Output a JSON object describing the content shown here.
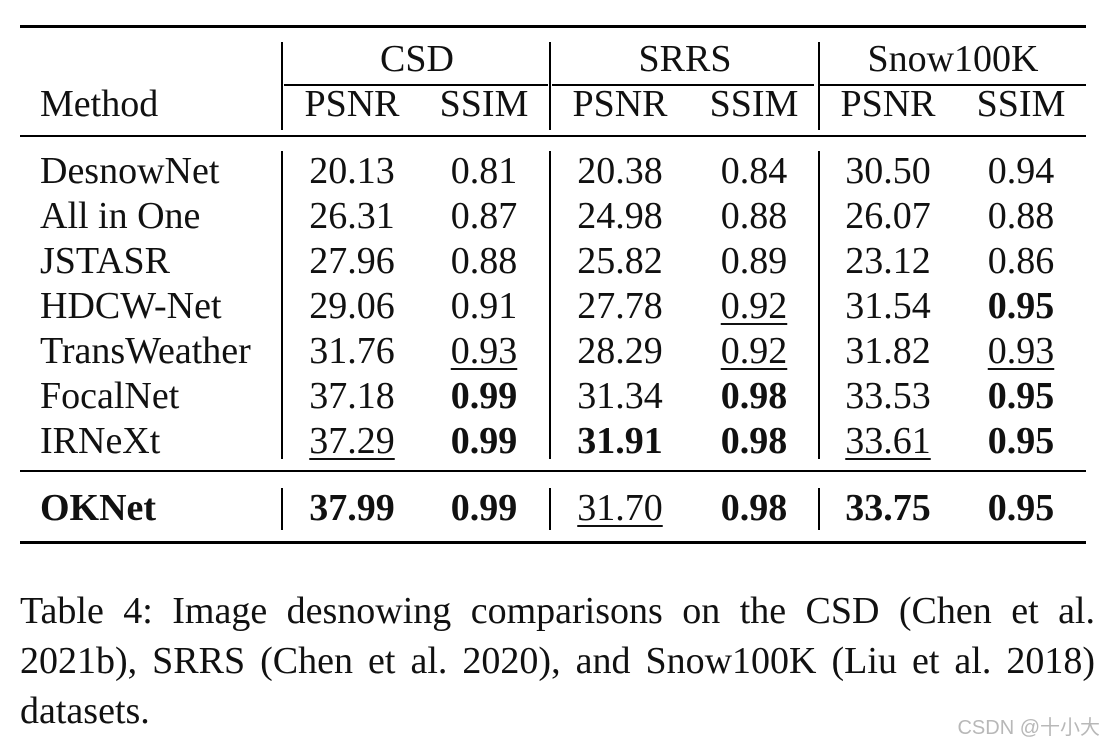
{
  "table": {
    "method_header": "Method",
    "groups": [
      "CSD",
      "SRRS",
      "Snow100K"
    ],
    "subheaders": [
      "PSNR",
      "SSIM",
      "PSNR",
      "SSIM",
      "PSNR",
      "SSIM"
    ],
    "rows": [
      {
        "method": "DesnowNet",
        "values": [
          "20.13",
          "0.81",
          "20.38",
          "0.84",
          "30.50",
          "0.94"
        ],
        "bold": [
          false,
          false,
          false,
          false,
          false,
          false
        ],
        "underline": [
          false,
          false,
          false,
          false,
          false,
          false
        ]
      },
      {
        "method": "All in One",
        "values": [
          "26.31",
          "0.87",
          "24.98",
          "0.88",
          "26.07",
          "0.88"
        ],
        "bold": [
          false,
          false,
          false,
          false,
          false,
          false
        ],
        "underline": [
          false,
          false,
          false,
          false,
          false,
          false
        ]
      },
      {
        "method": "JSTASR",
        "values": [
          "27.96",
          "0.88",
          "25.82",
          "0.89",
          "23.12",
          "0.86"
        ],
        "bold": [
          false,
          false,
          false,
          false,
          false,
          false
        ],
        "underline": [
          false,
          false,
          false,
          false,
          false,
          false
        ]
      },
      {
        "method": "HDCW-Net",
        "values": [
          "29.06",
          "0.91",
          "27.78",
          "0.92",
          "31.54",
          "0.95"
        ],
        "bold": [
          false,
          false,
          false,
          false,
          false,
          true
        ],
        "underline": [
          false,
          false,
          false,
          true,
          false,
          false
        ]
      },
      {
        "method": "TransWeather",
        "values": [
          "31.76",
          "0.93",
          "28.29",
          "0.92",
          "31.82",
          "0.93"
        ],
        "bold": [
          false,
          false,
          false,
          false,
          false,
          false
        ],
        "underline": [
          false,
          true,
          false,
          true,
          false,
          true
        ]
      },
      {
        "method": "FocalNet",
        "values": [
          "37.18",
          "0.99",
          "31.34",
          "0.98",
          "33.53",
          "0.95"
        ],
        "bold": [
          false,
          true,
          false,
          true,
          false,
          true
        ],
        "underline": [
          false,
          false,
          false,
          false,
          false,
          false
        ]
      },
      {
        "method": "IRNeXt",
        "values": [
          "37.29",
          "0.99",
          "31.91",
          "0.98",
          "33.61",
          "0.95"
        ],
        "bold": [
          false,
          true,
          true,
          true,
          false,
          true
        ],
        "underline": [
          true,
          false,
          false,
          false,
          true,
          false
        ]
      }
    ],
    "final_row": {
      "method": "OKNet",
      "values": [
        "37.99",
        "0.99",
        "31.70",
        "0.98",
        "33.75",
        "0.95"
      ],
      "bold": [
        true,
        true,
        false,
        true,
        true,
        true
      ],
      "underline": [
        false,
        false,
        true,
        false,
        false,
        false
      ]
    }
  },
  "caption": "Table 4: Image desnowing comparisons on the CSD (Chen et al. 2021b), SRRS (Chen et al. 2020), and Snow100K (Liu et al. 2018) datasets.",
  "watermark": "CSDN @十小大"
}
